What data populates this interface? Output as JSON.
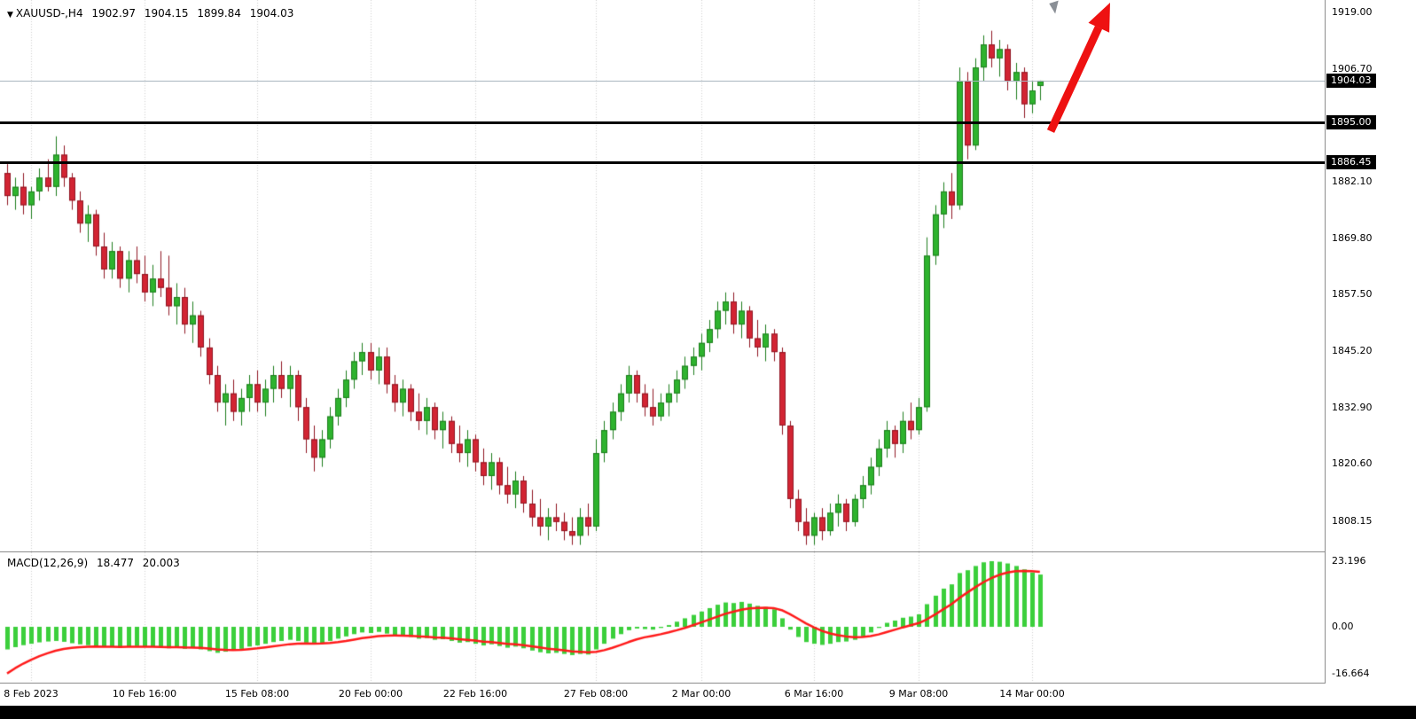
{
  "header": {
    "icon": "▼",
    "title": "XAUUSD-,H4",
    "open": "1902.97",
    "high": "1904.15",
    "low": "1899.84",
    "close": "1904.03"
  },
  "chart_data": {
    "type": "candlestick",
    "symbol": "XAUUSD-",
    "timeframe": "H4",
    "axes": {
      "price": {
        "top": 1921.7,
        "bottom": 1801.57
      },
      "macd": {
        "top": 26.33,
        "bottom": -19.75
      }
    },
    "price_axis": {
      "ticks": [
        {
          "text": "1919.00",
          "value": 1919.0
        },
        {
          "text": "1906.70",
          "value": 1906.7
        },
        {
          "text": "1882.10",
          "value": 1882.1
        },
        {
          "text": "1869.80",
          "value": 1869.8
        },
        {
          "text": "1857.50",
          "value": 1857.5
        },
        {
          "text": "1845.20",
          "value": 1845.2
        },
        {
          "text": "1832.90",
          "value": 1832.9
        },
        {
          "text": "1820.60",
          "value": 1820.6
        },
        {
          "text": "1808.15",
          "value": 1808.15
        }
      ],
      "badges": [
        {
          "text": "1904.03",
          "value": 1904.03
        },
        {
          "text": "1895.00",
          "value": 1895.0
        },
        {
          "text": "1886.45",
          "value": 1886.45
        }
      ]
    },
    "macd_axis": {
      "ticks": [
        {
          "text": "23.196",
          "value": 23.196
        },
        {
          "text": "0.00",
          "value": 0
        },
        {
          "text": "-16.664",
          "value": -16.664
        }
      ]
    },
    "time_axis": {
      "labels": [
        {
          "text": "8 Feb 2023",
          "i": 3
        },
        {
          "text": "10 Feb 16:00",
          "i": 17
        },
        {
          "text": "15 Feb 08:00",
          "i": 31
        },
        {
          "text": "20 Feb 00:00",
          "i": 45
        },
        {
          "text": "22 Feb 16:00",
          "i": 58
        },
        {
          "text": "27 Feb 08:00",
          "i": 73
        },
        {
          "text": "2 Mar 00:00",
          "i": 86
        },
        {
          "text": "6 Mar 16:00",
          "i": 100
        },
        {
          "text": "9 Mar 08:00",
          "i": 113
        },
        {
          "text": "14 Mar 00:00",
          "i": 127
        }
      ]
    },
    "hlines": [
      {
        "price": 1895.0
      },
      {
        "price": 1886.45
      }
    ],
    "current_price": 1904.03,
    "candles": [
      [
        1884,
        1886,
        1877,
        1879
      ],
      [
        1879,
        1883,
        1876,
        1881
      ],
      [
        1881,
        1884,
        1875,
        1877
      ],
      [
        1877,
        1881,
        1874,
        1880
      ],
      [
        1880,
        1885,
        1878,
        1883
      ],
      [
        1883,
        1887,
        1880,
        1881
      ],
      [
        1881,
        1892,
        1879,
        1888
      ],
      [
        1888,
        1890,
        1881,
        1883
      ],
      [
        1883,
        1884,
        1876,
        1878
      ],
      [
        1878,
        1880,
        1871,
        1873
      ],
      [
        1873,
        1877,
        1869,
        1875
      ],
      [
        1875,
        1876,
        1866,
        1868
      ],
      [
        1868,
        1871,
        1861,
        1863
      ],
      [
        1863,
        1869,
        1861,
        1867
      ],
      [
        1867,
        1868,
        1859,
        1861
      ],
      [
        1861,
        1867,
        1858,
        1865
      ],
      [
        1865,
        1868,
        1860,
        1862
      ],
      [
        1862,
        1866,
        1856,
        1858
      ],
      [
        1858,
        1864,
        1855,
        1861
      ],
      [
        1861,
        1867,
        1857,
        1859
      ],
      [
        1859,
        1866,
        1853,
        1855
      ],
      [
        1855,
        1860,
        1851,
        1857
      ],
      [
        1857,
        1859,
        1849,
        1851
      ],
      [
        1851,
        1856,
        1847,
        1853
      ],
      [
        1853,
        1854,
        1844,
        1846
      ],
      [
        1846,
        1848,
        1838,
        1840
      ],
      [
        1840,
        1842,
        1832,
        1834
      ],
      [
        1834,
        1838,
        1829,
        1836
      ],
      [
        1836,
        1839,
        1830,
        1832
      ],
      [
        1832,
        1837,
        1829,
        1835
      ],
      [
        1835,
        1840,
        1832,
        1838
      ],
      [
        1838,
        1841,
        1832,
        1834
      ],
      [
        1834,
        1839,
        1831,
        1837
      ],
      [
        1837,
        1842,
        1834,
        1840
      ],
      [
        1840,
        1843,
        1835,
        1837
      ],
      [
        1837,
        1842,
        1833,
        1840
      ],
      [
        1840,
        1841,
        1830,
        1833
      ],
      [
        1833,
        1835,
        1823,
        1826
      ],
      [
        1826,
        1829,
        1819,
        1822
      ],
      [
        1822,
        1828,
        1820,
        1826
      ],
      [
        1826,
        1833,
        1824,
        1831
      ],
      [
        1831,
        1837,
        1829,
        1835
      ],
      [
        1835,
        1841,
        1833,
        1839
      ],
      [
        1839,
        1845,
        1837,
        1843
      ],
      [
        1843,
        1847,
        1840,
        1845
      ],
      [
        1845,
        1847,
        1839,
        1841
      ],
      [
        1841,
        1846,
        1838,
        1844
      ],
      [
        1844,
        1846,
        1836,
        1838
      ],
      [
        1838,
        1840,
        1832,
        1834
      ],
      [
        1834,
        1839,
        1831,
        1837
      ],
      [
        1837,
        1838,
        1830,
        1832
      ],
      [
        1832,
        1836,
        1828,
        1830
      ],
      [
        1830,
        1835,
        1827,
        1833
      ],
      [
        1833,
        1834,
        1826,
        1828
      ],
      [
        1828,
        1832,
        1824,
        1830
      ],
      [
        1830,
        1831,
        1823,
        1825
      ],
      [
        1825,
        1829,
        1821,
        1823
      ],
      [
        1823,
        1828,
        1820,
        1826
      ],
      [
        1826,
        1827,
        1819,
        1821
      ],
      [
        1821,
        1824,
        1816,
        1818
      ],
      [
        1818,
        1823,
        1815,
        1821
      ],
      [
        1821,
        1822,
        1814,
        1816
      ],
      [
        1816,
        1820,
        1812,
        1814
      ],
      [
        1814,
        1819,
        1811,
        1817
      ],
      [
        1817,
        1818,
        1810,
        1812
      ],
      [
        1812,
        1815,
        1807,
        1809
      ],
      [
        1809,
        1813,
        1805,
        1807
      ],
      [
        1807,
        1811,
        1804,
        1809
      ],
      [
        1809,
        1812,
        1806,
        1808
      ],
      [
        1808,
        1810,
        1804,
        1806
      ],
      [
        1806,
        1809,
        1803,
        1805
      ],
      [
        1805,
        1811,
        1803,
        1809
      ],
      [
        1809,
        1812,
        1805,
        1807
      ],
      [
        1807,
        1826,
        1806,
        1823
      ],
      [
        1823,
        1830,
        1821,
        1828
      ],
      [
        1828,
        1834,
        1826,
        1832
      ],
      [
        1832,
        1838,
        1830,
        1836
      ],
      [
        1836,
        1842,
        1834,
        1840
      ],
      [
        1840,
        1841,
        1834,
        1836
      ],
      [
        1836,
        1838,
        1831,
        1833
      ],
      [
        1833,
        1837,
        1829,
        1831
      ],
      [
        1831,
        1836,
        1830,
        1834
      ],
      [
        1834,
        1838,
        1831,
        1836
      ],
      [
        1836,
        1841,
        1834,
        1839
      ],
      [
        1839,
        1844,
        1837,
        1842
      ],
      [
        1842,
        1846,
        1840,
        1844
      ],
      [
        1844,
        1849,
        1841,
        1847
      ],
      [
        1847,
        1852,
        1845,
        1850
      ],
      [
        1850,
        1856,
        1848,
        1854
      ],
      [
        1854,
        1858,
        1851,
        1856
      ],
      [
        1856,
        1858,
        1849,
        1851
      ],
      [
        1851,
        1856,
        1848,
        1854
      ],
      [
        1854,
        1855,
        1846,
        1848
      ],
      [
        1848,
        1852,
        1844,
        1846
      ],
      [
        1846,
        1851,
        1843,
        1849
      ],
      [
        1849,
        1850,
        1843,
        1845
      ],
      [
        1845,
        1846,
        1827,
        1829
      ],
      [
        1829,
        1830,
        1811,
        1813
      ],
      [
        1813,
        1815,
        1806,
        1808
      ],
      [
        1808,
        1811,
        1803,
        1805
      ],
      [
        1805,
        1810,
        1803,
        1809
      ],
      [
        1809,
        1811,
        1804,
        1806
      ],
      [
        1806,
        1812,
        1805,
        1810
      ],
      [
        1810,
        1814,
        1807,
        1812
      ],
      [
        1812,
        1813,
        1806,
        1808
      ],
      [
        1808,
        1814,
        1807,
        1813
      ],
      [
        1813,
        1818,
        1811,
        1816
      ],
      [
        1816,
        1822,
        1814,
        1820
      ],
      [
        1820,
        1826,
        1818,
        1824
      ],
      [
        1824,
        1830,
        1822,
        1828
      ],
      [
        1828,
        1829,
        1822,
        1825
      ],
      [
        1825,
        1832,
        1823,
        1830
      ],
      [
        1830,
        1834,
        1826,
        1828
      ],
      [
        1828,
        1835,
        1827,
        1833
      ],
      [
        1833,
        1870,
        1832,
        1866
      ],
      [
        1866,
        1877,
        1864,
        1875
      ],
      [
        1875,
        1882,
        1872,
        1880
      ],
      [
        1880,
        1884,
        1874,
        1877
      ],
      [
        1877,
        1907,
        1876,
        1904
      ],
      [
        1904,
        1906,
        1887,
        1890
      ],
      [
        1890,
        1909,
        1889,
        1907
      ],
      [
        1907,
        1914,
        1904,
        1912
      ],
      [
        1912,
        1915,
        1907,
        1909
      ],
      [
        1909,
        1913,
        1905,
        1911
      ],
      [
        1911,
        1912,
        1902,
        1904
      ],
      [
        1904,
        1908,
        1900,
        1906
      ],
      [
        1906,
        1907,
        1896,
        1899
      ],
      [
        1899,
        1904,
        1897,
        1902
      ],
      [
        1902.97,
        1904.15,
        1899.84,
        1904.03
      ]
    ],
    "macd": {
      "label": "MACD(12,26,9)",
      "value_main": "18.477",
      "value_signal": "20.003",
      "signal_period": 9,
      "signal_seed": -16.5,
      "hist": [
        -8.0,
        -7.2,
        -6.5,
        -6.0,
        -5.5,
        -5.2,
        -5.0,
        -5.3,
        -5.8,
        -6.2,
        -6.5,
        -6.8,
        -7.2,
        -7.0,
        -7.4,
        -7.0,
        -6.8,
        -7.2,
        -7.0,
        -7.3,
        -7.6,
        -7.2,
        -7.8,
        -7.4,
        -8.0,
        -8.6,
        -9.2,
        -8.8,
        -8.4,
        -7.8,
        -7.0,
        -6.6,
        -6.0,
        -5.4,
        -5.0,
        -4.6,
        -5.0,
        -5.6,
        -6.2,
        -5.8,
        -5.0,
        -4.2,
        -3.4,
        -2.6,
        -2.0,
        -2.2,
        -1.8,
        -2.4,
        -3.0,
        -3.2,
        -3.6,
        -4.2,
        -4.0,
        -4.6,
        -4.4,
        -5.0,
        -5.6,
        -5.4,
        -6.0,
        -6.6,
        -6.2,
        -6.8,
        -7.4,
        -7.0,
        -7.6,
        -8.4,
        -9.0,
        -9.4,
        -9.2,
        -9.6,
        -10.0,
        -9.6,
        -9.8,
        -8.0,
        -6.0,
        -4.2,
        -2.6,
        -1.2,
        -0.6,
        -0.8,
        -1.0,
        -0.4,
        0.6,
        1.8,
        3.0,
        4.2,
        5.4,
        6.6,
        7.8,
        8.6,
        8.4,
        8.8,
        8.2,
        7.4,
        7.0,
        6.2,
        3.0,
        -1.0,
        -3.6,
        -5.4,
        -6.0,
        -6.4,
        -6.0,
        -5.4,
        -5.2,
        -4.6,
        -3.4,
        -2.0,
        -0.4,
        1.4,
        2.2,
        3.2,
        3.6,
        4.4,
        8.0,
        11.0,
        13.5,
        15.0,
        19.0,
        20.0,
        21.5,
        22.8,
        23.2,
        23.0,
        22.4,
        21.5,
        20.3,
        19.2,
        18.477
      ]
    },
    "colors": {
      "bull": "#1d7d1d",
      "bull_fill": "#2eb32e",
      "bear": "#8f1622",
      "bear_fill": "#d22433",
      "hist": "#3bcf3b",
      "signal": "#ff1a1a",
      "grid": "#cfcfcf",
      "hline": "#000000",
      "price_line": "#aab6c0",
      "badge_bg": "#000000",
      "badge_text": "#ffffff",
      "arrow": "#ee1111"
    }
  }
}
